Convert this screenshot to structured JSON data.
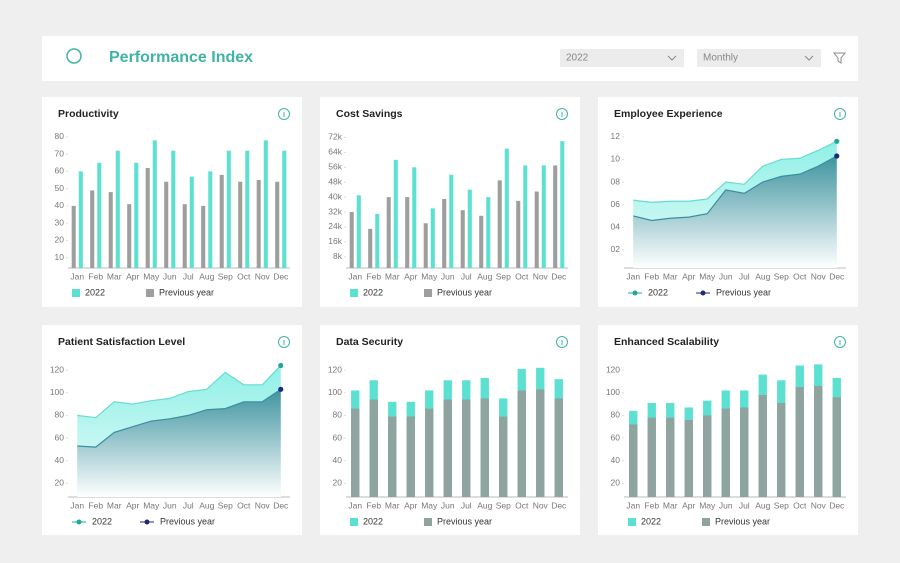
{
  "header": {
    "title": "Performance Index",
    "year": "2022",
    "period": "Monthly"
  },
  "chart_data": [
    {
      "type": "bar",
      "barmode": "group",
      "title": "Productivity",
      "categories": [
        "Jan",
        "Feb",
        "Mar",
        "Apr",
        "May",
        "Jun",
        "Jul",
        "Aug",
        "Sep",
        "Oct",
        "Nov",
        "Dec"
      ],
      "series": [
        {
          "name": "2022",
          "color": "#5ce0d2",
          "values": [
            60,
            65,
            72,
            65,
            78,
            72,
            57,
            60,
            72,
            72,
            78,
            72
          ]
        },
        {
          "name": "Previous year",
          "color": "#9e9e9e",
          "values": [
            40,
            49,
            48,
            41,
            62,
            54,
            41,
            40,
            58,
            54,
            55,
            54
          ]
        }
      ],
      "ylim": [
        4,
        84
      ],
      "yticks": [
        10,
        20,
        30,
        40,
        50,
        60,
        70,
        80
      ]
    },
    {
      "type": "bar",
      "barmode": "group",
      "title": "Cost Savings",
      "categories": [
        "Jan",
        "Feb",
        "Mar",
        "Apr",
        "May",
        "Jun",
        "Jul",
        "Aug",
        "Sep",
        "Oct",
        "Nov",
        "Dec"
      ],
      "series": [
        {
          "name": "2022",
          "color": "#5ce0d2",
          "values": [
            41000,
            31000,
            60000,
            56000,
            34000,
            52000,
            44000,
            40000,
            66000,
            57000,
            57000,
            70000
          ]
        },
        {
          "name": "Previous year",
          "color": "#9e9e9e",
          "values": [
            32000,
            23000,
            40000,
            40000,
            26000,
            39000,
            33000,
            30000,
            49000,
            38000,
            43000,
            57000
          ]
        }
      ],
      "ylim": [
        2000,
        76000
      ],
      "yticks": [
        {
          "value": 8000,
          "label": "8k"
        },
        {
          "value": 16000,
          "label": "16k"
        },
        {
          "value": 24000,
          "label": "24k"
        },
        {
          "value": 32000,
          "label": "32k"
        },
        {
          "value": 40000,
          "label": "40k"
        },
        {
          "value": 48000,
          "label": "48k"
        },
        {
          "value": 56000,
          "label": "56k"
        },
        {
          "value": 64000,
          "label": "64k"
        },
        {
          "value": 72000,
          "label": "72k"
        }
      ]
    },
    {
      "type": "area",
      "title": "Employee Experience",
      "categories": [
        "Jan",
        "Feb",
        "Mar",
        "Apr",
        "May",
        "Jun",
        "Jul",
        "Aug",
        "Sep",
        "Oct",
        "Nov",
        "Dec"
      ],
      "series": [
        {
          "name": "2022",
          "color": "#1fa89a",
          "values": [
            6.4,
            6.2,
            6.3,
            6.3,
            6.5,
            8.0,
            7.8,
            9.4,
            10.0,
            10.1,
            10.8,
            11.6
          ]
        },
        {
          "name": "Previous year",
          "color": "#1e2a78",
          "values": [
            5.0,
            4.6,
            4.8,
            4.9,
            5.2,
            7.3,
            7.0,
            8.0,
            8.5,
            8.7,
            9.4,
            10.3
          ]
        }
      ],
      "ylim": [
        0.4,
        12.6
      ],
      "yticks": [
        {
          "value": 2,
          "label": "02"
        },
        {
          "value": 4,
          "label": "04"
        },
        {
          "value": 6,
          "label": "06"
        },
        {
          "value": 8,
          "label": "08"
        },
        10,
        12
      ]
    },
    {
      "type": "area",
      "title": "Patient Satisfaction Level",
      "categories": [
        "Jan",
        "Feb",
        "Mar",
        "Apr",
        "May",
        "Jun",
        "Jul",
        "Aug",
        "Sep",
        "Oct",
        "Nov",
        "Dec"
      ],
      "series": [
        {
          "name": "2022",
          "color": "#1fa89a",
          "values": [
            80,
            78,
            92,
            90,
            93,
            95,
            101,
            103,
            118,
            107,
            107,
            124
          ]
        },
        {
          "name": "Previous year",
          "color": "#1e2a78",
          "values": [
            53,
            52,
            65,
            70,
            75,
            77,
            80,
            85,
            86,
            92,
            92,
            103
          ]
        }
      ],
      "ylim": [
        8,
        128
      ],
      "yticks": [
        20,
        40,
        60,
        80,
        100,
        120
      ]
    },
    {
      "type": "bar",
      "barmode": "overlay",
      "title": "Data Security",
      "categories": [
        "Jan",
        "Feb",
        "Mar",
        "Apr",
        "May",
        "Jun",
        "Jul",
        "Aug",
        "Sep",
        "Oct",
        "Nov",
        "Dec"
      ],
      "series": [
        {
          "name": "2022",
          "color": "#5ce0d2",
          "values": [
            102,
            111,
            92,
            92,
            102,
            111,
            111,
            113,
            95,
            121,
            122,
            112
          ]
        },
        {
          "name": "Previous year",
          "color": "#8fa39f",
          "values": [
            86,
            94,
            79,
            79,
            86,
            94,
            94,
            95,
            79,
            102,
            103,
            95
          ]
        }
      ],
      "ylim": [
        8,
        128
      ],
      "yticks": [
        20,
        40,
        60,
        80,
        100,
        120
      ]
    },
    {
      "type": "bar",
      "barmode": "overlay",
      "title": "Enhanced Scalability",
      "categories": [
        "Jan",
        "Feb",
        "Mar",
        "Apr",
        "May",
        "Jun",
        "Jul",
        "Aug",
        "Sep",
        "Oct",
        "Nov",
        "Dec"
      ],
      "series": [
        {
          "name": "2022",
          "color": "#5ce0d2",
          "values": [
            84,
            91,
            91,
            87,
            93,
            102,
            102,
            116,
            111,
            124,
            125,
            113
          ]
        },
        {
          "name": "Previous year",
          "color": "#8fa39f",
          "values": [
            72,
            78,
            78,
            76,
            80,
            86,
            87,
            98,
            91,
            105,
            106,
            96
          ]
        }
      ],
      "ylim": [
        8,
        128
      ],
      "yticks": [
        20,
        40,
        60,
        80,
        100,
        120
      ]
    }
  ]
}
